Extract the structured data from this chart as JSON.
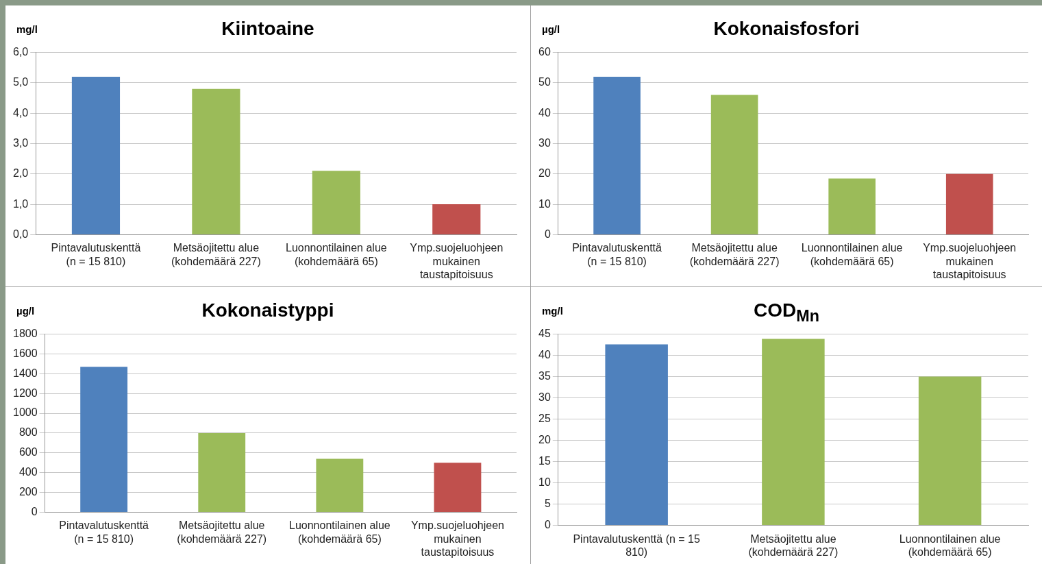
{
  "chart_data": [
    {
      "type": "bar",
      "title": "Kiintoaine",
      "ylabel": "mg/l",
      "categories": [
        "Pintavalutuskenttä (n = 15 810)",
        "Metsäojitettu alue (kohdemäärä 227)",
        "Luonnontilainen alue (kohdemäärä 65)",
        "Ymp.suojeluohjeen mukainen taustapitoisuus"
      ],
      "values": [
        5.2,
        4.8,
        2.1,
        1.0
      ],
      "colors": [
        "#4f81bd",
        "#9bbb59",
        "#9bbb59",
        "#c0504d"
      ],
      "ylim": [
        0,
        6
      ],
      "yticks": [
        {
          "value": 0,
          "label": "0,0"
        },
        {
          "value": 1,
          "label": "1,0"
        },
        {
          "value": 2,
          "label": "2,0"
        },
        {
          "value": 3,
          "label": "3,0"
        },
        {
          "value": 4,
          "label": "4,0"
        },
        {
          "value": 5,
          "label": "5,0"
        },
        {
          "value": 6,
          "label": "6,0"
        }
      ],
      "grid": "y",
      "legend": false
    },
    {
      "type": "bar",
      "title": "Kokonaisfosfori",
      "ylabel": "µg/l",
      "categories": [
        "Pintavalutuskenttä (n = 15 810)",
        "Metsäojitettu alue (kohdemäärä 227)",
        "Luonnontilainen alue (kohdemäärä 65)",
        "Ymp.suojeluohjeen mukainen taustapitoisuus"
      ],
      "values": [
        52,
        46,
        18.5,
        20
      ],
      "colors": [
        "#4f81bd",
        "#9bbb59",
        "#9bbb59",
        "#c0504d"
      ],
      "ylim": [
        0,
        60
      ],
      "yticks": [
        0,
        10,
        20,
        30,
        40,
        50,
        60
      ],
      "grid": "y",
      "legend": false
    },
    {
      "type": "bar",
      "title": "Kokonaistyppi",
      "ylabel": "µg/l",
      "categories": [
        "Pintavalutuskenttä (n = 15 810)",
        "Metsäojitettu alue (kohdemäärä 227)",
        "Luonnontilainen alue (kohdemäärä 65)",
        "Ymp.suojeluohjeen mukainen taustapitoisuus"
      ],
      "values": [
        1470,
        800,
        540,
        500
      ],
      "colors": [
        "#4f81bd",
        "#9bbb59",
        "#9bbb59",
        "#c0504d"
      ],
      "ylim": [
        0,
        1800
      ],
      "yticks": [
        0,
        200,
        400,
        600,
        800,
        1000,
        1200,
        1400,
        1600,
        1800
      ],
      "grid": "y",
      "legend": false
    },
    {
      "type": "bar",
      "title": "COD$_{Mn}$",
      "ylabel": "mg/l",
      "categories": [
        "Pintavalutuskenttä (n = 15 810)",
        "Metsäojitettu alue (kohdemäärä 227)",
        "Luonnontilainen alue (kohdemäärä 65)"
      ],
      "values": [
        42.6,
        43.9,
        35
      ],
      "colors": [
        "#4f81bd",
        "#9bbb59",
        "#9bbb59"
      ],
      "ylim": [
        0,
        45
      ],
      "yticks": [
        0,
        5,
        10,
        15,
        20,
        25,
        30,
        35,
        40,
        45
      ],
      "grid": "y",
      "legend": false
    }
  ]
}
